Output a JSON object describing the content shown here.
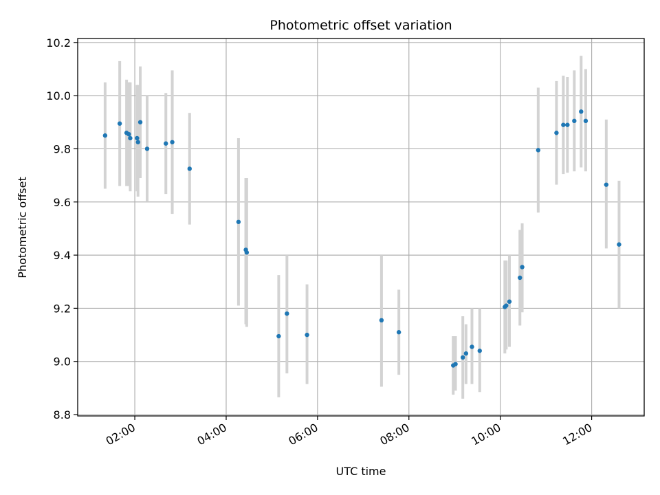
{
  "chart_data": {
    "type": "scatter",
    "title": "Photometric offset variation",
    "xlabel": "UTC time",
    "ylabel": "Photometric offset",
    "xlim_hours": [
      0.75,
      13.15
    ],
    "ylim": [
      8.795,
      10.215
    ],
    "x_ticks": [
      {
        "hour": 2,
        "label": "02:00"
      },
      {
        "hour": 4,
        "label": "04:00"
      },
      {
        "hour": 6,
        "label": "06:00"
      },
      {
        "hour": 8,
        "label": "08:00"
      },
      {
        "hour": 10,
        "label": "10:00"
      },
      {
        "hour": 12,
        "label": "12:00"
      }
    ],
    "y_ticks": [
      {
        "value": 8.8,
        "label": "8.8"
      },
      {
        "value": 9.0,
        "label": "9.0"
      },
      {
        "value": 9.2,
        "label": "9.2"
      },
      {
        "value": 9.4,
        "label": "9.4"
      },
      {
        "value": 9.6,
        "label": "9.6"
      },
      {
        "value": 9.8,
        "label": "9.8"
      },
      {
        "value": 10.0,
        "label": "10.0"
      },
      {
        "value": 10.2,
        "label": "10.2"
      }
    ],
    "grid": true,
    "series": [
      {
        "name": "offset",
        "color": "#1f77b4",
        "error_color": "#d3d3d3",
        "points": [
          {
            "t": 1.35,
            "y": 9.85,
            "lo": 9.65,
            "hi": 10.05
          },
          {
            "t": 1.67,
            "y": 9.895,
            "lo": 9.66,
            "hi": 10.13
          },
          {
            "t": 1.82,
            "y": 9.86,
            "lo": 9.66,
            "hi": 10.06
          },
          {
            "t": 1.87,
            "y": 9.855,
            "lo": 9.66,
            "hi": 10.05
          },
          {
            "t": 1.9,
            "y": 9.84,
            "lo": 9.64,
            "hi": 10.05
          },
          {
            "t": 2.05,
            "y": 9.84,
            "lo": 9.64,
            "hi": 10.04
          },
          {
            "t": 2.07,
            "y": 9.825,
            "lo": 9.62,
            "hi": 10.04
          },
          {
            "t": 2.12,
            "y": 9.9,
            "lo": 9.69,
            "hi": 10.11
          },
          {
            "t": 2.27,
            "y": 9.8,
            "lo": 9.6,
            "hi": 10.0
          },
          {
            "t": 2.68,
            "y": 9.82,
            "lo": 9.63,
            "hi": 10.01
          },
          {
            "t": 2.82,
            "y": 9.825,
            "lo": 9.555,
            "hi": 10.095
          },
          {
            "t": 3.2,
            "y": 9.725,
            "lo": 9.515,
            "hi": 9.935
          },
          {
            "t": 4.27,
            "y": 9.525,
            "lo": 9.21,
            "hi": 9.84
          },
          {
            "t": 4.43,
            "y": 9.42,
            "lo": 9.14,
            "hi": 9.69
          },
          {
            "t": 4.45,
            "y": 9.41,
            "lo": 9.13,
            "hi": 9.69
          },
          {
            "t": 5.15,
            "y": 9.095,
            "lo": 8.865,
            "hi": 9.325
          },
          {
            "t": 5.33,
            "y": 9.18,
            "lo": 8.955,
            "hi": 9.4
          },
          {
            "t": 5.77,
            "y": 9.1,
            "lo": 8.915,
            "hi": 9.29
          },
          {
            "t": 7.4,
            "y": 9.155,
            "lo": 8.905,
            "hi": 9.4
          },
          {
            "t": 7.78,
            "y": 9.11,
            "lo": 8.95,
            "hi": 9.27
          },
          {
            "t": 8.97,
            "y": 8.985,
            "lo": 8.875,
            "hi": 9.095
          },
          {
            "t": 9.02,
            "y": 8.99,
            "lo": 8.89,
            "hi": 9.095
          },
          {
            "t": 9.18,
            "y": 9.015,
            "lo": 8.86,
            "hi": 9.17
          },
          {
            "t": 9.25,
            "y": 9.03,
            "lo": 8.915,
            "hi": 9.14
          },
          {
            "t": 9.38,
            "y": 9.055,
            "lo": 8.915,
            "hi": 9.2
          },
          {
            "t": 9.55,
            "y": 9.04,
            "lo": 8.885,
            "hi": 9.2
          },
          {
            "t": 10.1,
            "y": 9.205,
            "lo": 9.03,
            "hi": 9.38
          },
          {
            "t": 10.13,
            "y": 9.21,
            "lo": 9.045,
            "hi": 9.38
          },
          {
            "t": 10.2,
            "y": 9.225,
            "lo": 9.055,
            "hi": 9.4
          },
          {
            "t": 10.43,
            "y": 9.315,
            "lo": 9.135,
            "hi": 9.495
          },
          {
            "t": 10.48,
            "y": 9.355,
            "lo": 9.185,
            "hi": 9.52
          },
          {
            "t": 10.83,
            "y": 9.795,
            "lo": 9.56,
            "hi": 10.03
          },
          {
            "t": 11.23,
            "y": 9.86,
            "lo": 9.665,
            "hi": 10.055
          },
          {
            "t": 11.38,
            "y": 9.89,
            "lo": 9.705,
            "hi": 10.075
          },
          {
            "t": 11.47,
            "y": 9.89,
            "lo": 9.71,
            "hi": 10.07
          },
          {
            "t": 11.62,
            "y": 9.905,
            "lo": 9.715,
            "hi": 10.095
          },
          {
            "t": 11.77,
            "y": 9.94,
            "lo": 9.73,
            "hi": 10.15
          },
          {
            "t": 11.87,
            "y": 9.905,
            "lo": 9.715,
            "hi": 10.1
          },
          {
            "t": 12.32,
            "y": 9.665,
            "lo": 9.425,
            "hi": 9.91
          },
          {
            "t": 12.6,
            "y": 9.44,
            "lo": 9.2,
            "hi": 9.68
          }
        ]
      }
    ]
  }
}
